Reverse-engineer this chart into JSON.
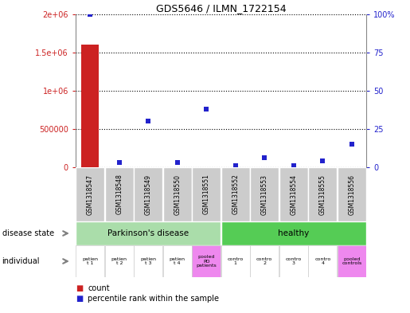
{
  "title": "GDS5646 / ILMN_1722154",
  "samples": [
    "GSM1318547",
    "GSM1318548",
    "GSM1318549",
    "GSM1318550",
    "GSM1318551",
    "GSM1318552",
    "GSM1318553",
    "GSM1318554",
    "GSM1318555",
    "GSM1318556"
  ],
  "count_values": [
    1600000,
    3000,
    3000,
    3000,
    5000,
    3000,
    3000,
    3000,
    3000,
    2000
  ],
  "percentile_values": [
    100,
    3,
    30,
    3,
    38,
    1,
    6,
    1,
    4,
    15
  ],
  "count_color": "#cc2222",
  "percentile_color": "#2222cc",
  "ylim_left": [
    0,
    2000000
  ],
  "ylim_right": [
    0,
    100
  ],
  "yticks_left": [
    0,
    500000,
    1000000,
    1500000,
    2000000
  ],
  "ytick_labels_left": [
    "0",
    "500000",
    "1e+06",
    "1.5e+06",
    "2e+06"
  ],
  "yticks_right": [
    0,
    25,
    50,
    75,
    100
  ],
  "ytick_labels_right": [
    "0",
    "25",
    "50",
    "75",
    "100%"
  ],
  "parkinsons_color": "#aaddaa",
  "healthy_color": "#55cc55",
  "parkinsons_label": "Parkinson's disease",
  "healthy_label": "healthy",
  "individual_labels": [
    "patien\nt 1",
    "patien\nt 2",
    "patien\nt 3",
    "patien\nt 4",
    "pooled\nPD\npatients",
    "contro\n1",
    "contro\n2",
    "contro\n3",
    "contro\n4",
    "pooled\ncontrols"
  ],
  "individual_colors": [
    "#ffffff",
    "#ffffff",
    "#ffffff",
    "#ffffff",
    "#ee88ee",
    "#ffffff",
    "#ffffff",
    "#ffffff",
    "#ffffff",
    "#ee88ee"
  ],
  "bg_color": "#ffffff",
  "sample_bg_color": "#cccccc",
  "disease_state_label": "disease state",
  "individual_row_label": "individual",
  "legend_count": "count",
  "legend_pct": "percentile rank within the sample"
}
